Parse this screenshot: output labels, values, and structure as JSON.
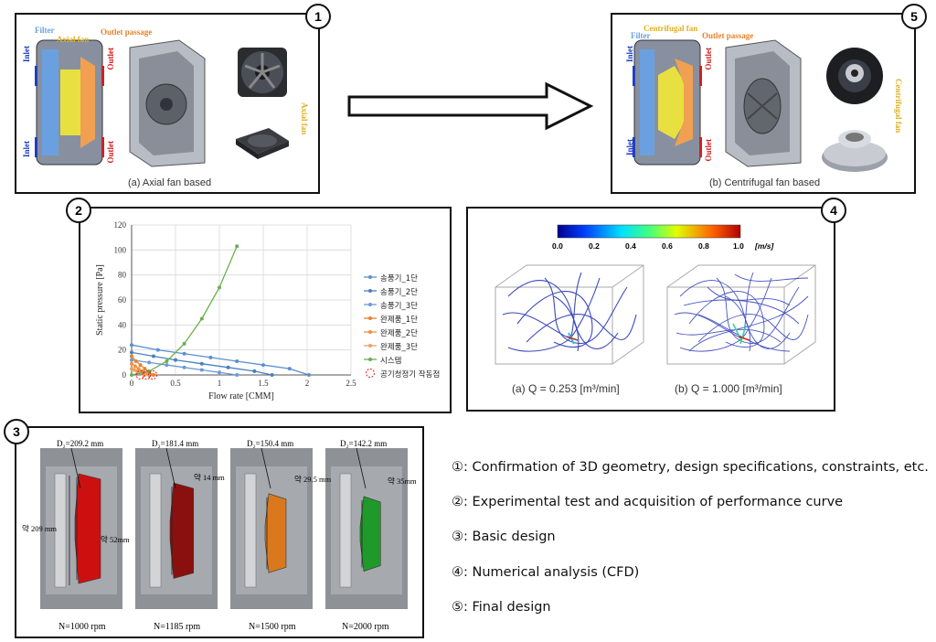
{
  "panel1": {
    "badge": "1",
    "caption": "(a)  Axial fan based",
    "labels": {
      "filter": "Filter",
      "fan": "Axial fan",
      "outlet_passage": "Outlet passage",
      "inlet": "Inlet",
      "outlet": "Outlet",
      "side_fan": "Axial fan"
    }
  },
  "panel5": {
    "badge": "5",
    "caption": "(b)  Centrifugal fan based",
    "labels": {
      "filter": "Filter",
      "fan": "Centrifugal fan",
      "outlet_passage": "Outlet passage",
      "inlet": "Inlet",
      "outlet": "Outlet",
      "side_fan": "Centrifugal fan"
    }
  },
  "panel2": {
    "badge": "2",
    "legend": [
      "송풍기_1단",
      "송풍기_2단",
      "송풍기_3단",
      "완제품_1단",
      "완제품_2단",
      "완제품_3단",
      "시스템",
      "공기청정기 작동점"
    ]
  },
  "panel4": {
    "badge": "4",
    "colorbar": {
      "ticks": [
        "0.0",
        "0.2",
        "0.4",
        "0.6",
        "0.8",
        "1.0"
      ],
      "unit": "[m/s]"
    },
    "caption_a": "(a)  Q = 0.253  [m³/min]",
    "caption_b": "(b)  Q = 1.000  [m³/min]"
  },
  "panel3": {
    "badge": "3",
    "designs": [
      {
        "diameter": "D₂=209.2 mm",
        "rpm": "N=1000 rpm",
        "color": "#cc1010"
      },
      {
        "diameter": "D₂=181.4 mm",
        "rpm": "N=1185 rpm",
        "color": "#8a1010"
      },
      {
        "diameter": "D₂=150.4 mm",
        "rpm": "N=1500 rpm",
        "color": "#d9781c"
      },
      {
        "diameter": "D₂=142.2 mm",
        "rpm": "N=2000 rpm",
        "color": "#1f9a2a"
      }
    ],
    "annotations": {
      "height": "약 209 mm",
      "width": "약 52mm",
      "d2": "약 14 mm",
      "d3": "약 29.5 mm",
      "d4": "약 35mm"
    }
  },
  "steps": [
    "①: Confirmation of 3D geometry, design specifications, constraints, etc.",
    "②: Experimental test and acquisition of performance curve",
    "③: Basic design",
    "④: Numerical analysis (CFD)",
    "⑤: Final design"
  ],
  "chart_data": {
    "type": "line",
    "title": "",
    "xlabel": "Flow rate [CMM]",
    "ylabel": "Static pressure [Pa]",
    "xlim": [
      0,
      2.5
    ],
    "ylim": [
      0,
      120
    ],
    "xticks": [
      "0",
      "0.5",
      "1",
      "1.5",
      "2",
      "2.5"
    ],
    "yticks": [
      "0",
      "20",
      "40",
      "60",
      "80",
      "100",
      "120"
    ],
    "series": [
      {
        "name": "송풍기_1단",
        "color": "#5b8fd0",
        "x": [
          0,
          0.3,
          0.6,
          0.9,
          1.2,
          1.5,
          1.8,
          2.02
        ],
        "y": [
          24,
          20,
          17,
          14,
          11,
          8,
          5,
          0
        ]
      },
      {
        "name": "송풍기_2단",
        "color": "#4a7fc0",
        "x": [
          0,
          0.25,
          0.5,
          0.8,
          1.1,
          1.4,
          1.6
        ],
        "y": [
          18,
          15,
          12,
          9,
          6,
          3,
          0
        ]
      },
      {
        "name": "송풍기_3단",
        "color": "#6a9ad8",
        "x": [
          0,
          0.2,
          0.4,
          0.6,
          0.8,
          1.0,
          1.2
        ],
        "y": [
          12,
          10,
          8,
          6,
          4,
          2,
          0
        ]
      },
      {
        "name": "완제품_1단",
        "color": "#e8822a",
        "x": [
          0,
          0.05,
          0.1,
          0.15,
          0.2,
          0.25
        ],
        "y": [
          15,
          11,
          8,
          5,
          2,
          0
        ]
      },
      {
        "name": "완제품_2단",
        "color": "#f09040",
        "x": [
          0,
          0.04,
          0.08,
          0.12,
          0.16,
          0.2
        ],
        "y": [
          9,
          7,
          5,
          3,
          1,
          0
        ]
      },
      {
        "name": "완제품_3단",
        "color": "#f0a060",
        "x": [
          0,
          0.03,
          0.06,
          0.09,
          0.12,
          0.15
        ],
        "y": [
          5,
          4,
          3,
          2,
          1,
          0
        ]
      },
      {
        "name": "시스템",
        "color": "#6ab04c",
        "x": [
          0,
          0.2,
          0.4,
          0.6,
          0.8,
          1.0,
          1.2
        ],
        "y": [
          0,
          3,
          11,
          25,
          45,
          70,
          103
        ]
      }
    ],
    "operating_points": {
      "name": "공기청정기 작동점",
      "x": [
        0.1,
        0.17,
        0.24
      ],
      "y": [
        0,
        0,
        0
      ]
    }
  }
}
